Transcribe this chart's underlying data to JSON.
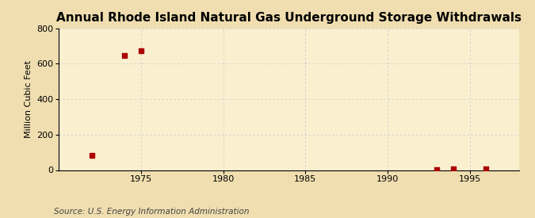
{
  "title": "Annual Rhode Island Natural Gas Underground Storage Withdrawals",
  "ylabel": "Million Cubic Feet",
  "source": "Source: U.S. Energy Information Administration",
  "background_color": "#f0deb0",
  "plot_background_color": "#faf0d0",
  "grid_color": "#cccccc",
  "data_points": [
    {
      "year": 1972,
      "value": 85
    },
    {
      "year": 1974,
      "value": 648
    },
    {
      "year": 1975,
      "value": 672
    },
    {
      "year": 1993,
      "value": 4
    },
    {
      "year": 1994,
      "value": 5
    },
    {
      "year": 1996,
      "value": 5
    }
  ],
  "marker_color": "#aa0000",
  "marker_size": 4,
  "xlim": [
    1970,
    1998
  ],
  "ylim": [
    0,
    800
  ],
  "xticks": [
    1975,
    1980,
    1985,
    1990,
    1995
  ],
  "yticks": [
    0,
    200,
    400,
    600,
    800
  ],
  "title_fontsize": 11,
  "label_fontsize": 8,
  "tick_fontsize": 8,
  "source_fontsize": 7.5
}
